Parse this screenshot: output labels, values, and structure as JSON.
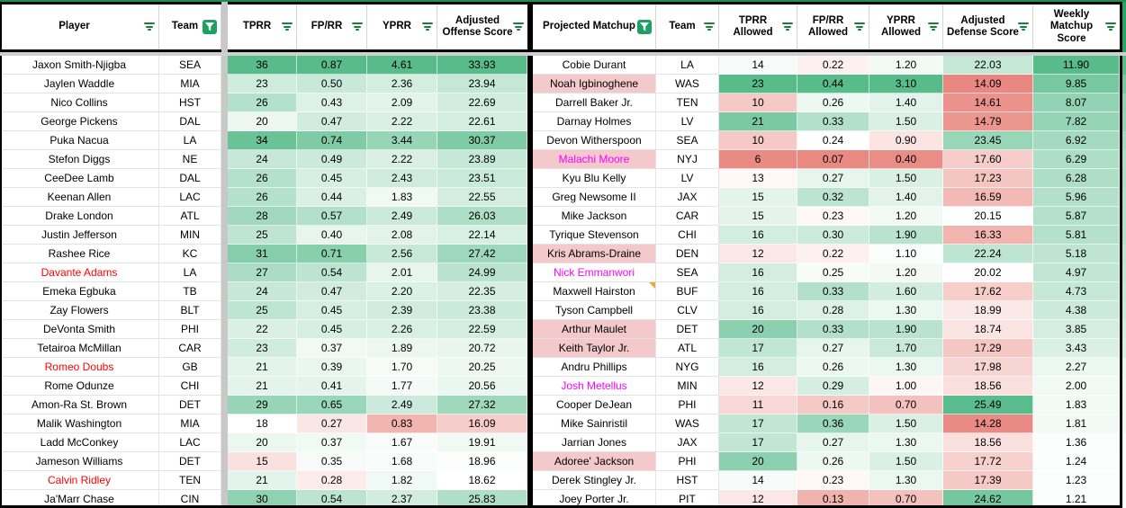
{
  "colors": {
    "scale_green": "#57bb8a",
    "scale_red": "#e67c73",
    "top_line_green": "#1e8e58",
    "frozen_bar_gray": "#cfcfcf",
    "spacer_gray": "#c8c8c8",
    "filter_lines_green": "#188038",
    "filter_active_bg": "#1fa061",
    "name_red": "#ff0000",
    "name_magenta": "#ff00ff",
    "label_pink_bg": "#f4c9cb",
    "note_orange": "#f2a33c",
    "edge_strip_header_green": "#27a567"
  },
  "left_table": {
    "columns": [
      {
        "key": "player",
        "label": "Player",
        "filter": "menu",
        "type": "name"
      },
      {
        "key": "team",
        "label": "Team",
        "filter": "active",
        "type": "team"
      },
      {
        "key": "tprr",
        "label": "TPRR",
        "filter": "menu",
        "type": "stat",
        "scale": {
          "min": 5,
          "mid": 18,
          "max": 36
        }
      },
      {
        "key": "fprr",
        "label": "FP/RR",
        "filter": "menu",
        "type": "stat",
        "scale": {
          "min": 0.05,
          "mid": 0.32,
          "max": 0.87
        }
      },
      {
        "key": "yprr",
        "label": "YPRR",
        "filter": "menu",
        "type": "stat",
        "scale": {
          "min": 0.3,
          "mid": 1.55,
          "max": 4.61
        }
      },
      {
        "key": "adj",
        "label": "Adjusted Offense Score",
        "filter": "menu",
        "type": "stat",
        "scale": {
          "min": 12,
          "mid": 18.6,
          "max": 33.93
        }
      }
    ],
    "rows": [
      {
        "player": "Jaxon Smith-Njigba",
        "team": "SEA",
        "tprr": "36",
        "fprr": "0.87",
        "yprr": "4.61",
        "adj": "33.93"
      },
      {
        "player": "Jaylen Waddle",
        "team": "MIA",
        "tprr": "23",
        "fprr": "0.50",
        "yprr": "2.36",
        "adj": "23.94"
      },
      {
        "player": "Nico Collins",
        "team": "HST",
        "tprr": "26",
        "fprr": "0.43",
        "yprr": "2.09",
        "adj": "22.69"
      },
      {
        "player": "George Pickens",
        "team": "DAL",
        "tprr": "20",
        "fprr": "0.47",
        "yprr": "2.22",
        "adj": "22.61"
      },
      {
        "player": "Puka Nacua",
        "team": "LA",
        "tprr": "34",
        "fprr": "0.74",
        "yprr": "3.44",
        "adj": "30.37"
      },
      {
        "player": "Stefon Diggs",
        "team": "NE",
        "tprr": "24",
        "fprr": "0.49",
        "yprr": "2.22",
        "adj": "23.89"
      },
      {
        "player": "CeeDee Lamb",
        "team": "DAL",
        "tprr": "26",
        "fprr": "0.45",
        "yprr": "2.43",
        "adj": "23.51"
      },
      {
        "player": "Keenan Allen",
        "team": "LAC",
        "tprr": "26",
        "fprr": "0.44",
        "yprr": "1.83",
        "adj": "22.55"
      },
      {
        "player": "Drake London",
        "team": "ATL",
        "tprr": "28",
        "fprr": "0.57",
        "yprr": "2.49",
        "adj": "26.03"
      },
      {
        "player": "Justin Jefferson",
        "team": "MIN",
        "tprr": "25",
        "fprr": "0.40",
        "yprr": "2.08",
        "adj": "22.14"
      },
      {
        "player": "Rashee Rice",
        "team": "KC",
        "tprr": "31",
        "fprr": "0.71",
        "yprr": "2.56",
        "adj": "27.42"
      },
      {
        "player": "Davante Adams",
        "team": "LA",
        "tprr": "27",
        "fprr": "0.54",
        "yprr": "2.01",
        "adj": "24.99",
        "name_color": "red"
      },
      {
        "player": "Emeka Egbuka",
        "team": "TB",
        "tprr": "24",
        "fprr": "0.47",
        "yprr": "2.20",
        "adj": "22.35"
      },
      {
        "player": "Zay Flowers",
        "team": "BLT",
        "tprr": "25",
        "fprr": "0.45",
        "yprr": "2.39",
        "adj": "23.38"
      },
      {
        "player": "DeVonta Smith",
        "team": "PHI",
        "tprr": "22",
        "fprr": "0.45",
        "yprr": "2.26",
        "adj": "22.59"
      },
      {
        "player": "Tetairoa McMillan",
        "team": "CAR",
        "tprr": "23",
        "fprr": "0.37",
        "yprr": "1.89",
        "adj": "20.72"
      },
      {
        "player": "Romeo Doubs",
        "team": "GB",
        "tprr": "21",
        "fprr": "0.39",
        "yprr": "1.70",
        "adj": "20.25",
        "name_color": "red"
      },
      {
        "player": "Rome Odunze",
        "team": "CHI",
        "tprr": "21",
        "fprr": "0.41",
        "yprr": "1.77",
        "adj": "20.56"
      },
      {
        "player": "Amon-Ra St. Brown",
        "team": "DET",
        "tprr": "29",
        "fprr": "0.65",
        "yprr": "2.49",
        "adj": "27.32"
      },
      {
        "player": "Malik Washington",
        "team": "MIA",
        "tprr": "18",
        "fprr": "0.27",
        "yprr": "0.83",
        "adj": "16.09"
      },
      {
        "player": "Ladd McConkey",
        "team": "LAC",
        "tprr": "20",
        "fprr": "0.37",
        "yprr": "1.67",
        "adj": "19.91"
      },
      {
        "player": "Jameson Williams",
        "team": "DET",
        "tprr": "15",
        "fprr": "0.35",
        "yprr": "1.68",
        "adj": "18.96"
      },
      {
        "player": "Calvin Ridley",
        "team": "TEN",
        "tprr": "21",
        "fprr": "0.28",
        "yprr": "1.82",
        "adj": "18.62",
        "name_color": "red"
      },
      {
        "player": "Ja'Marr Chase",
        "team": "CIN",
        "tprr": "30",
        "fprr": "0.54",
        "yprr": "2.37",
        "adj": "25.83"
      }
    ]
  },
  "right_table": {
    "columns": [
      {
        "key": "player",
        "label": "Projected Matchup",
        "filter": "active",
        "type": "name"
      },
      {
        "key": "team",
        "label": "Team",
        "filter": "menu",
        "type": "team"
      },
      {
        "key": "tprrA",
        "label": "TPRR Allowed",
        "filter": "menu",
        "type": "stat",
        "scale": {
          "min": 5,
          "mid": 13.5,
          "max": 23
        }
      },
      {
        "key": "fprrA",
        "label": "FP/RR Allowed",
        "filter": "menu",
        "type": "stat",
        "scale": {
          "min": 0.05,
          "mid": 0.24,
          "max": 0.44
        }
      },
      {
        "key": "yprrA",
        "label": "YPRR Allowed",
        "filter": "menu",
        "type": "stat",
        "scale": {
          "min": 0.3,
          "mid": 1.05,
          "max": 3.1
        }
      },
      {
        "key": "adjDef",
        "label": "Adjusted Defense Score",
        "filter": "menu",
        "type": "stat",
        "scale": {
          "min": 13.5,
          "mid": 20.1,
          "max": 25.6
        }
      },
      {
        "key": "weekly",
        "label": "Weekly Matchup Score",
        "filter": "menu",
        "type": "stat",
        "scale": {
          "min": -2,
          "mid": 1.0,
          "max": 11.9
        }
      }
    ],
    "rows": [
      {
        "player": "Cobie Durant",
        "team": "LA",
        "tprrA": "14",
        "fprrA": "0.22",
        "yprrA": "1.20",
        "adjDef": "22.03",
        "weekly": "11.90"
      },
      {
        "player": "Noah Igbinoghene",
        "team": "WAS",
        "tprrA": "23",
        "fprrA": "0.44",
        "yprrA": "3.10",
        "adjDef": "14.09",
        "weekly": "9.85",
        "name_bg": "pink"
      },
      {
        "player": "Darrell Baker Jr.",
        "team": "TEN",
        "tprrA": "10",
        "fprrA": "0.26",
        "yprrA": "1.40",
        "adjDef": "14.61",
        "weekly": "8.07"
      },
      {
        "player": "Darnay Holmes",
        "team": "LV",
        "tprrA": "21",
        "fprrA": "0.33",
        "yprrA": "1.50",
        "adjDef": "14.79",
        "weekly": "7.82"
      },
      {
        "player": "Devon Witherspoon",
        "team": "SEA",
        "tprrA": "10",
        "fprrA": "0.24",
        "yprrA": "0.90",
        "adjDef": "23.45",
        "weekly": "6.92"
      },
      {
        "player": "Malachi Moore",
        "team": "NYJ",
        "tprrA": "6",
        "fprrA": "0.07",
        "yprrA": "0.40",
        "adjDef": "17.60",
        "weekly": "6.29",
        "name_bg": "pink",
        "name_color": "magenta"
      },
      {
        "player": "Kyu Blu Kelly",
        "team": "LV",
        "tprrA": "13",
        "fprrA": "0.27",
        "yprrA": "1.50",
        "adjDef": "17.23",
        "weekly": "6.28"
      },
      {
        "player": "Greg Newsome II",
        "team": "JAX",
        "tprrA": "15",
        "fprrA": "0.32",
        "yprrA": "1.40",
        "adjDef": "16.59",
        "weekly": "5.96"
      },
      {
        "player": "Mike Jackson",
        "team": "CAR",
        "tprrA": "15",
        "fprrA": "0.23",
        "yprrA": "1.20",
        "adjDef": "20.15",
        "weekly": "5.87"
      },
      {
        "player": "Tyrique Stevenson",
        "team": "CHI",
        "tprrA": "16",
        "fprrA": "0.30",
        "yprrA": "1.90",
        "adjDef": "16.33",
        "weekly": "5.81"
      },
      {
        "player": "Kris Abrams-Draine",
        "team": "DEN",
        "tprrA": "12",
        "fprrA": "0.22",
        "yprrA": "1.10",
        "adjDef": "22.24",
        "weekly": "5.18",
        "name_bg": "pink"
      },
      {
        "player": "Nick Emmanwori",
        "team": "SEA",
        "tprrA": "16",
        "fprrA": "0.25",
        "yprrA": "1.20",
        "adjDef": "20.02",
        "weekly": "4.97",
        "name_color": "magenta"
      },
      {
        "player": "Maxwell Hairston",
        "team": "BUF",
        "tprrA": "16",
        "fprrA": "0.33",
        "yprrA": "1.60",
        "adjDef": "17.62",
        "weekly": "4.73",
        "note": true
      },
      {
        "player": "Tyson Campbell",
        "team": "CLV",
        "tprrA": "16",
        "fprrA": "0.28",
        "yprrA": "1.30",
        "adjDef": "18.99",
        "weekly": "4.38"
      },
      {
        "player": "Arthur Maulet",
        "team": "DET",
        "tprrA": "20",
        "fprrA": "0.33",
        "yprrA": "1.90",
        "adjDef": "18.74",
        "weekly": "3.85",
        "name_bg": "pink"
      },
      {
        "player": "Keith Taylor Jr.",
        "team": "ATL",
        "tprrA": "17",
        "fprrA": "0.27",
        "yprrA": "1.70",
        "adjDef": "17.29",
        "weekly": "3.43",
        "name_bg": "pink"
      },
      {
        "player": "Andru Phillips",
        "team": "NYG",
        "tprrA": "16",
        "fprrA": "0.26",
        "yprrA": "1.30",
        "adjDef": "17.98",
        "weekly": "2.27"
      },
      {
        "player": "Josh Metellus",
        "team": "MIN",
        "tprrA": "12",
        "fprrA": "0.29",
        "yprrA": "1.00",
        "adjDef": "18.56",
        "weekly": "2.00",
        "name_color": "magenta"
      },
      {
        "player": "Cooper DeJean",
        "team": "PHI",
        "tprrA": "11",
        "fprrA": "0.16",
        "yprrA": "0.70",
        "adjDef": "25.49",
        "weekly": "1.83"
      },
      {
        "player": "Mike Sainristil",
        "team": "WAS",
        "tprrA": "17",
        "fprrA": "0.36",
        "yprrA": "1.50",
        "adjDef": "14.28",
        "weekly": "1.81"
      },
      {
        "player": "Jarrian Jones",
        "team": "JAX",
        "tprrA": "17",
        "fprrA": "0.27",
        "yprrA": "1.30",
        "adjDef": "18.56",
        "weekly": "1.36"
      },
      {
        "player": "Adoree' Jackson",
        "team": "PHI",
        "tprrA": "20",
        "fprrA": "0.26",
        "yprrA": "1.50",
        "adjDef": "17.72",
        "weekly": "1.24",
        "name_bg": "pink"
      },
      {
        "player": "Derek Stingley Jr.",
        "team": "HST",
        "tprrA": "14",
        "fprrA": "0.23",
        "yprrA": "1.30",
        "adjDef": "17.39",
        "weekly": "1.23"
      },
      {
        "player": "Joey Porter Jr.",
        "team": "PIT",
        "tprrA": "12",
        "fprrA": "0.13",
        "yprrA": "0.70",
        "adjDef": "24.62",
        "weekly": "1.21"
      }
    ]
  }
}
